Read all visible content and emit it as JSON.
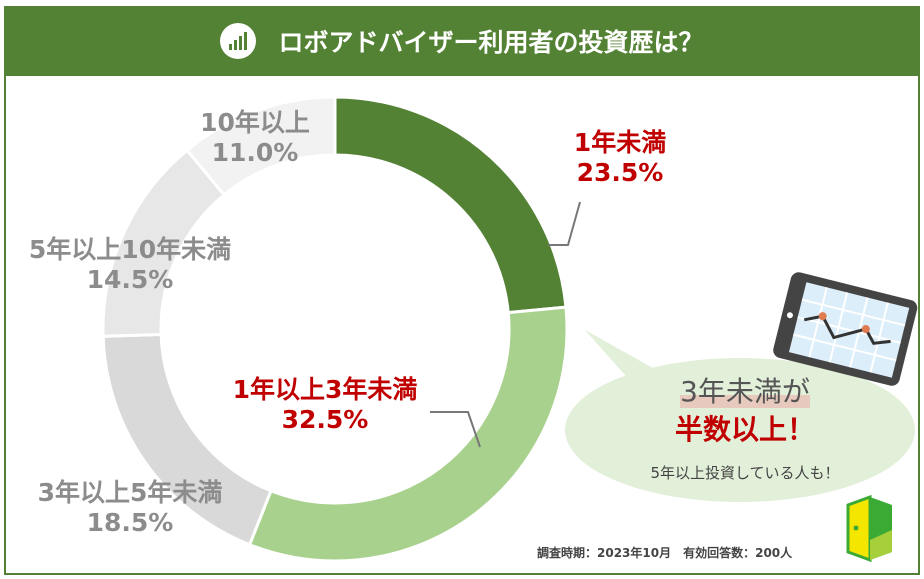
{
  "header": {
    "title": "ロボアドバイザー利用者の投資歴は？",
    "icon": "bar-chart-icon"
  },
  "chart_data": {
    "type": "pie",
    "variant": "donut",
    "categories": [
      "1年未満",
      "1年以上3年未満",
      "3年以上5年未満",
      "5年以上10年未満",
      "10年以上"
    ],
    "values": [
      23.5,
      32.5,
      18.5,
      14.5,
      11.0
    ],
    "labels": [
      "23.5%",
      "32.5%",
      "18.5%",
      "14.5%",
      "11.0%"
    ],
    "colors": [
      "#548235",
      "#a9d18e",
      "#d9d9d9",
      "#e7e7e7",
      "#f2f2f2"
    ],
    "label_colors": [
      "#c00000",
      "#c00000",
      "#8c8c8c",
      "#8c8c8c",
      "#8c8c8c"
    ]
  },
  "callout": {
    "line1": "3年未満が",
    "line2": "半数以上！",
    "line3": "5年以上投資している人も！"
  },
  "footer": "調査時期：2023年10月　有効回答数：200人"
}
